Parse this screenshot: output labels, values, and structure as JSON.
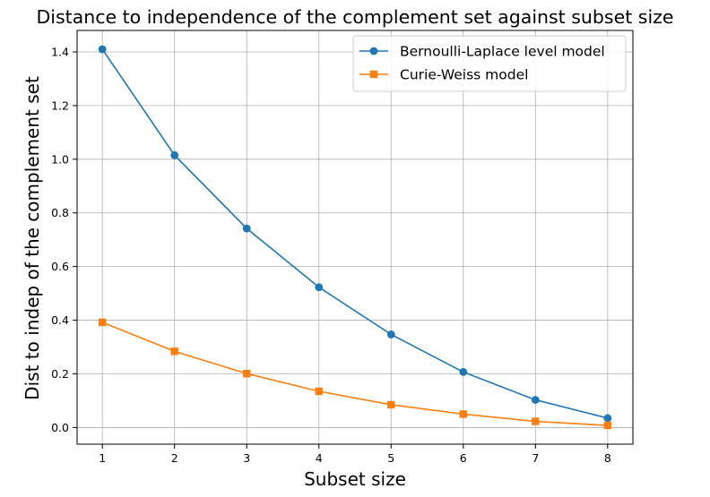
{
  "chart_data": {
    "type": "line",
    "title": "Distance to independence of the complement set against subset size",
    "xlabel": "Subset size",
    "ylabel": "Dist to indep of the complement set",
    "x": [
      1,
      2,
      3,
      4,
      5,
      6,
      7,
      8
    ],
    "xlim": [
      0.65,
      8.35
    ],
    "ylim": [
      -0.062,
      1.48
    ],
    "xticks": [
      "1",
      "2",
      "3",
      "4",
      "5",
      "6",
      "7",
      "8"
    ],
    "yticks": [
      "0.0",
      "0.2",
      "0.4",
      "0.6",
      "0.8",
      "1.0",
      "1.2",
      "1.4"
    ],
    "grid": true,
    "legend_position": "top-right",
    "series": [
      {
        "name": "Bernoulli-Laplace level model",
        "marker": "circle",
        "color": "#1f77b4",
        "values": [
          1.41,
          1.015,
          0.742,
          0.523,
          0.347,
          0.207,
          0.103,
          0.035
        ]
      },
      {
        "name": "Curie-Weiss model",
        "marker": "square",
        "color": "#ff7f0e",
        "values": [
          0.392,
          0.284,
          0.201,
          0.135,
          0.085,
          0.05,
          0.023,
          0.008
        ]
      }
    ]
  }
}
